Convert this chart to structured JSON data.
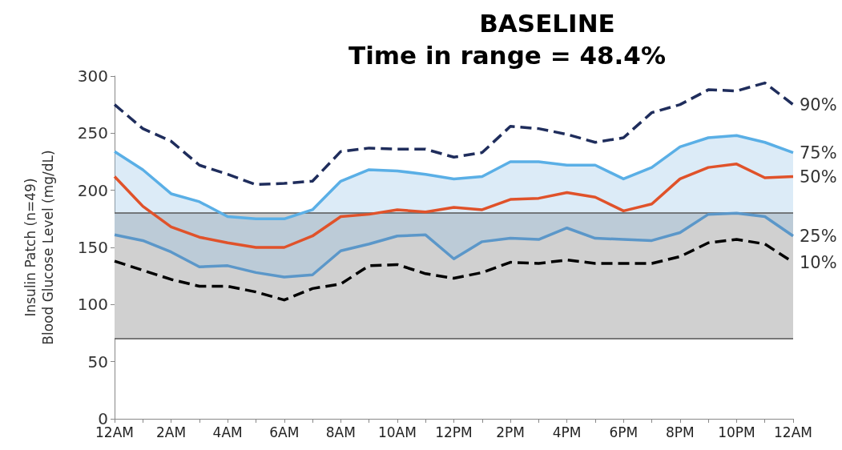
{
  "chart_data": {
    "type": "line",
    "title": "BASELINE",
    "subtitle": "Time in range = 48.4%",
    "ylabel": "Insulin Patch (n=49)\nBlood Glucose Level (mg/dL)",
    "categories": [
      "12AM",
      null,
      "2AM",
      null,
      "4AM",
      null,
      "6AM",
      null,
      "8AM",
      null,
      "10AM",
      null,
      "12PM",
      null,
      "2PM",
      null,
      "4PM",
      null,
      "6PM",
      null,
      "8PM",
      null,
      "10PM",
      null,
      "12AM"
    ],
    "ylim": [
      0,
      300
    ],
    "yticks": [
      0,
      50,
      100,
      150,
      200,
      250,
      300
    ],
    "grid": false,
    "legend": false,
    "marker": "none",
    "series": [
      {
        "name": "90%",
        "color": "#1f2d5c",
        "line_style": "dashed",
        "values": [
          275,
          254,
          243,
          222,
          214,
          205,
          206,
          208,
          234,
          237,
          236,
          236,
          229,
          233,
          256,
          254,
          249,
          242,
          246,
          268,
          275,
          288,
          287,
          294,
          275
        ]
      },
      {
        "name": "75%",
        "color": "#5aafe6",
        "line_style": "solid",
        "values": [
          234,
          218,
          197,
          190,
          177,
          175,
          175,
          183,
          208,
          218,
          217,
          214,
          210,
          212,
          225,
          225,
          222,
          222,
          210,
          220,
          238,
          246,
          248,
          242,
          233
        ]
      },
      {
        "name": "50%",
        "color": "#e0522a",
        "line_style": "solid",
        "values": [
          212,
          186,
          168,
          159,
          154,
          150,
          150,
          160,
          177,
          179,
          183,
          181,
          185,
          183,
          192,
          193,
          198,
          194,
          182,
          188,
          210,
          220,
          223,
          211,
          212
        ],
        "lower": [
          161,
          156,
          146,
          133,
          134,
          128,
          124,
          126,
          147,
          153,
          160,
          161,
          140,
          155,
          158,
          157,
          167,
          158,
          157,
          156,
          163,
          179,
          180,
          177,
          160
        ],
        "upper": [
          234,
          218,
          197,
          190,
          177,
          175,
          175,
          183,
          208,
          218,
          217,
          214,
          210,
          212,
          225,
          225,
          222,
          222,
          210,
          220,
          238,
          246,
          248,
          242,
          233
        ]
      },
      {
        "name": "25%",
        "color": "#5b97c9",
        "line_style": "solid",
        "values": [
          161,
          156,
          146,
          133,
          134,
          128,
          124,
          126,
          147,
          153,
          160,
          161,
          140,
          155,
          158,
          157,
          167,
          158,
          157,
          156,
          163,
          179,
          180,
          177,
          160
        ]
      },
      {
        "name": "10%",
        "color": "#000000",
        "line_style": "dashed",
        "values": [
          138,
          130,
          122,
          116,
          116,
          111,
          104,
          114,
          118,
          134,
          135,
          127,
          123,
          128,
          137,
          136,
          139,
          136,
          136,
          136,
          142,
          154,
          157,
          153,
          137
        ]
      }
    ],
    "bands": [
      {
        "axis": "y",
        "from": 70,
        "to": 180,
        "color": "#d0d0d0"
      }
    ],
    "ref_lines": [
      {
        "axis": "y",
        "value": 70,
        "color": "#555555"
      },
      {
        "axis": "y",
        "value": 180,
        "color": "#555555"
      }
    ]
  }
}
